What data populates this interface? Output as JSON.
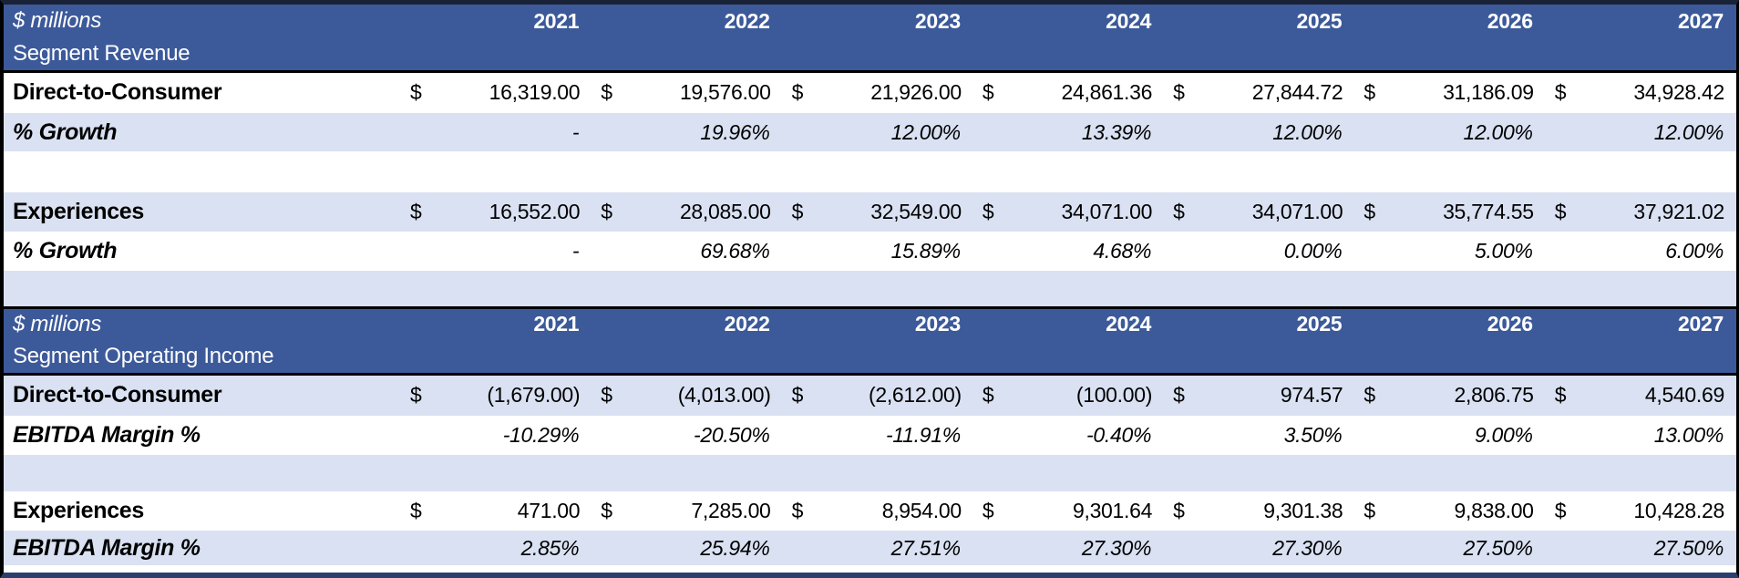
{
  "currency_symbol": "$",
  "years": [
    "2021",
    "2022",
    "2023",
    "2024",
    "2025",
    "2026",
    "2027"
  ],
  "colors": {
    "header_bg": "#3C5A9A",
    "header_text": "#FFFFFF",
    "band_bg": "#D9E1F2",
    "row_bg": "#FFFFFF",
    "text": "#000000",
    "header_separator": "#000000",
    "bottom_border": "#2B3F6E"
  },
  "sections": [
    {
      "unit_label": "$ millions",
      "title": "Segment Revenue",
      "rows": [
        {
          "label": "Direct-to-Consumer",
          "type": "currency",
          "values": [
            "16,319.00",
            "19,576.00",
            "21,926.00",
            "24,861.36",
            "27,844.72",
            "31,186.09",
            "34,928.42"
          ]
        },
        {
          "label": "% Growth",
          "type": "percent",
          "values": [
            "-",
            "19.96%",
            "12.00%",
            "13.39%",
            "12.00%",
            "12.00%",
            "12.00%"
          ]
        },
        {
          "label": "",
          "type": "blank"
        },
        {
          "label": "Experiences",
          "type": "currency",
          "values": [
            "16,552.00",
            "28,085.00",
            "32,549.00",
            "34,071.00",
            "34,071.00",
            "35,774.55",
            "37,921.02"
          ]
        },
        {
          "label": "% Growth",
          "type": "percent",
          "values": [
            "-",
            "69.68%",
            "15.89%",
            "4.68%",
            "0.00%",
            "5.00%",
            "6.00%"
          ]
        },
        {
          "label": "",
          "type": "blank"
        }
      ]
    },
    {
      "unit_label": "$ millions",
      "title": "Segment Operating Income",
      "rows": [
        {
          "label": "Direct-to-Consumer",
          "type": "currency",
          "values": [
            "(1,679.00)",
            "(4,013.00)",
            "(2,612.00)",
            "(100.00)",
            "974.57",
            "2,806.75",
            "4,540.69"
          ]
        },
        {
          "label": "EBITDA Margin %",
          "type": "percent",
          "values": [
            "-10.29%",
            "-20.50%",
            "-11.91%",
            "-0.40%",
            "3.50%",
            "9.00%",
            "13.00%"
          ]
        },
        {
          "label": "",
          "type": "blank"
        },
        {
          "label": "Experiences",
          "type": "currency",
          "values": [
            "471.00",
            "7,285.00",
            "8,954.00",
            "9,301.64",
            "9,301.38",
            "9,838.00",
            "10,428.28"
          ]
        },
        {
          "label": "EBITDA Margin %",
          "type": "percent",
          "values": [
            "2.85%",
            "25.94%",
            "27.51%",
            "27.30%",
            "27.30%",
            "27.50%",
            "27.50%"
          ]
        }
      ]
    }
  ]
}
